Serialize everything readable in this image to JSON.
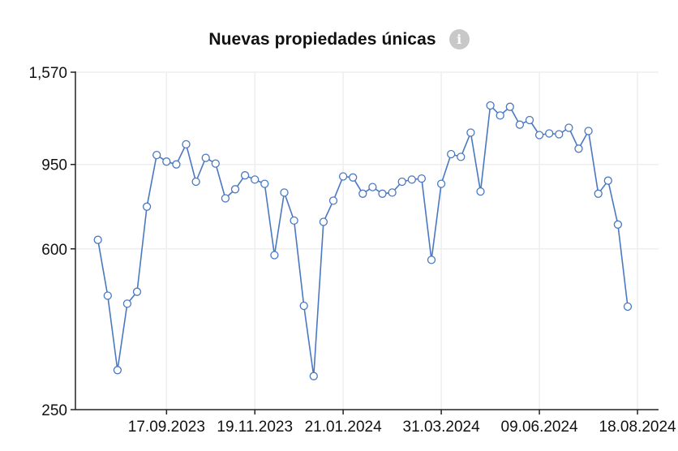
{
  "header": {
    "title": "Nuevas propiedades únicas",
    "info_icon": "info-icon"
  },
  "colors": {
    "series": "#4a78c2",
    "axis": "#222222",
    "grid": "#eeeeee",
    "marker_fill": "#ffffff"
  },
  "chart_data": {
    "type": "line",
    "title": "Nuevas propiedades únicas",
    "xlabel": "",
    "ylabel": "",
    "y_scale": "log",
    "ylim": [
      250,
      1570
    ],
    "yticks": [
      250,
      600,
      950,
      1570
    ],
    "ytick_labels": [
      "250",
      "600",
      "950",
      "1,570"
    ],
    "x_start": "2023-07-30",
    "x_step_days": 7,
    "xlim": [
      "2023-07-14",
      "2024-09-02"
    ],
    "xticks": [
      "2023-09-17",
      "2023-11-19",
      "2024-01-21",
      "2024-03-31",
      "2024-06-09",
      "2024-08-18"
    ],
    "xtick_labels": [
      "17.09.2023",
      "19.11.2023",
      "21.01.2024",
      "31.03.2024",
      "09.06.2024",
      "18.08.2024"
    ],
    "grid": true,
    "series": [
      {
        "name": "",
        "values": [
          630,
          465,
          310,
          445,
          475,
          755,
          1000,
          965,
          950,
          1060,
          865,
          985,
          955,
          790,
          830,
          895,
          875,
          855,
          580,
          815,
          700,
          440,
          300,
          695,
          780,
          890,
          885,
          810,
          840,
          810,
          815,
          865,
          875,
          880,
          565,
          855,
          1005,
          990,
          1130,
          820,
          1310,
          1240,
          1300,
          1180,
          1210,
          1115,
          1125,
          1120,
          1160,
          1035,
          1140,
          810,
          870,
          685,
          438
        ]
      }
    ]
  }
}
